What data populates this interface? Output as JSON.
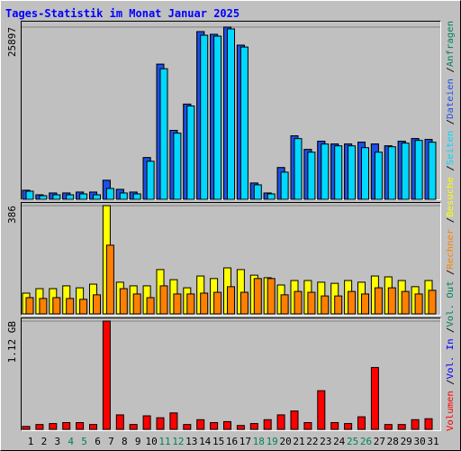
{
  "legend_separator": "/",
  "chart_data": [
    {
      "type": "bar",
      "title": "Tages-Statistik im Monat Januar 2025",
      "ylim": [
        0,
        25897
      ],
      "yticks": [
        25897
      ],
      "series": [
        {
          "name": "Anfragen",
          "color": "#00805c",
          "values": [
            1363,
            682,
            954,
            954,
            1090,
            1090,
            2862,
            1499,
            1090,
            6270,
            20309,
            10359,
            14312,
            25217,
            24808,
            25897,
            23172,
            2453,
            954,
            4771,
            9541,
            7497,
            8724,
            8315,
            8315,
            8587,
            8315,
            8042,
            8724,
            9132,
            8996
          ]
        },
        {
          "name": "Dateien",
          "color": "#1e50e6",
          "values": [
            1363,
            682,
            954,
            954,
            1090,
            1090,
            2862,
            1499,
            1090,
            6270,
            20309,
            10359,
            14312,
            25217,
            24808,
            25897,
            23172,
            2453,
            954,
            4771,
            9541,
            7497,
            8724,
            8315,
            8315,
            8587,
            8315,
            8042,
            8724,
            9132,
            8996
          ]
        },
        {
          "name": "Seiten",
          "color": "#00d8ff",
          "values": [
            1227,
            545,
            682,
            682,
            818,
            682,
            1636,
            954,
            818,
            5725,
            19627,
            9950,
            14039,
            24670,
            24534,
            25624,
            22898,
            2181,
            818,
            4089,
            9132,
            7088,
            8315,
            8042,
            8042,
            7769,
            7088,
            7906,
            8451,
            8860,
            8587
          ]
        }
      ]
    },
    {
      "type": "bar",
      "ylim": [
        0,
        386
      ],
      "yticks": [
        386
      ],
      "series": [
        {
          "name": "Besuche",
          "color": "#ffff00",
          "values": [
            74,
            90,
            90,
            100,
            93,
            106,
            386,
            113,
            100,
            100,
            158,
            122,
            93,
            135,
            126,
            164,
            158,
            138,
            129,
            103,
            119,
            119,
            113,
            109,
            119,
            113,
            135,
            132,
            119,
            97,
            119
          ]
        },
        {
          "name": "Rechner",
          "color": "#ff8000",
          "values": [
            58,
            55,
            58,
            55,
            52,
            68,
            245,
            90,
            71,
            58,
            100,
            71,
            71,
            74,
            77,
            97,
            77,
            126,
            126,
            68,
            80,
            77,
            64,
            64,
            80,
            71,
            93,
            93,
            80,
            71,
            84
          ]
        }
      ]
    },
    {
      "type": "bar",
      "ylim": [
        0,
        1.12
      ],
      "yticks": [
        {
          "value": 1.12,
          "label": "1.12 GB"
        }
      ],
      "categories": [
        "1",
        "2",
        "3",
        "4",
        "5",
        "6",
        "7",
        "8",
        "9",
        "10",
        "11",
        "12",
        "13",
        "14",
        "15",
        "16",
        "17",
        "18",
        "19",
        "20",
        "21",
        "22",
        "23",
        "24",
        "25",
        "26",
        "27",
        "28",
        "29",
        "30",
        "31"
      ],
      "category_colors": [
        "#000000",
        "#000000",
        "#000000",
        "#00805c",
        "#00805c",
        "#000000",
        "#000000",
        "#000000",
        "#000000",
        "#000000",
        "#00805c",
        "#00805c",
        "#000000",
        "#000000",
        "#000000",
        "#000000",
        "#000000",
        "#00805c",
        "#00805c",
        "#000000",
        "#000000",
        "#000000",
        "#000000",
        "#000000",
        "#00805c",
        "#00805c",
        "#000000",
        "#000000",
        "#000000",
        "#000000",
        "#000000"
      ],
      "series": [
        {
          "name": "Volumen",
          "color": "#ff0000",
          "values": [
            0.03,
            0.05,
            0.06,
            0.07,
            0.07,
            0.05,
            1.12,
            0.15,
            0.05,
            0.14,
            0.12,
            0.17,
            0.05,
            0.1,
            0.07,
            0.08,
            0.04,
            0.06,
            0.1,
            0.15,
            0.19,
            0.07,
            0.4,
            0.07,
            0.06,
            0.13,
            0.64,
            0.05,
            0.05,
            0.1,
            0.11
          ]
        }
      ],
      "legend_extra": [
        {
          "name": "Vol. In",
          "color": "#0000ff"
        },
        {
          "name": "Vol. Out",
          "color": "#00805c"
        }
      ]
    }
  ]
}
